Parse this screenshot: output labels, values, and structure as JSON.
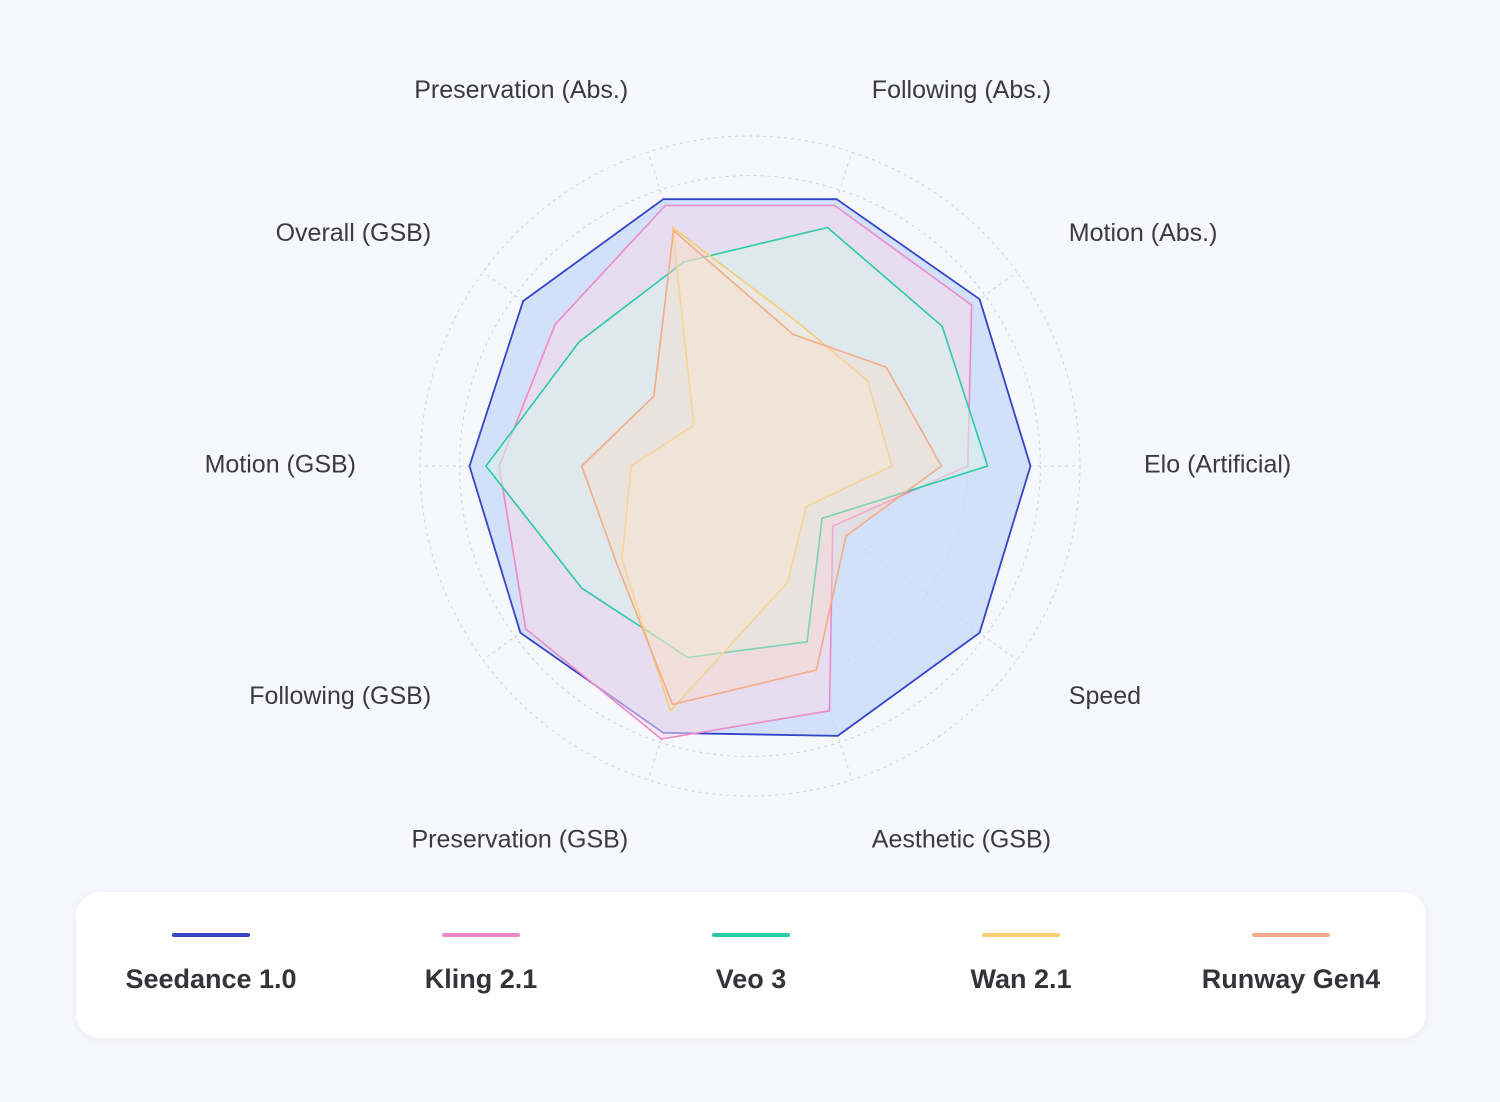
{
  "chart_data": {
    "type": "radar",
    "axes": [
      "Elo (Artificial)",
      "Motion (Abs.)",
      "Following (Abs.)",
      "Preservation (Abs.)",
      "Overall (GSB)",
      "Motion (GSB)",
      "Following (GSB)",
      "Preservation (GSB)",
      "Aesthetic (GSB)",
      "Speed"
    ],
    "rmax": 1.0,
    "ring_levels": [
      0.22,
      0.44,
      0.66,
      0.88,
      1.0
    ],
    "grid": true,
    "legend_position": "bottom",
    "series": [
      {
        "name": "Seedance 1.0",
        "color": "#3445c7",
        "fill": "#c8d8f7",
        "fill_opacity": 0.78,
        "values": [
          0.85,
          0.86,
          0.85,
          0.85,
          0.85,
          0.85,
          0.86,
          0.85,
          0.86,
          0.86
        ]
      },
      {
        "name": "Kling 2.1",
        "color": "#ee89c8",
        "fill": "#f7d9ea",
        "fill_opacity": 0.55,
        "values": [
          0.66,
          0.83,
          0.83,
          0.83,
          0.73,
          0.76,
          0.84,
          0.87,
          0.78,
          0.31
        ]
      },
      {
        "name": "Veo 3",
        "color": "#29cca6",
        "fill": "#d9f2ea",
        "fill_opacity": 0.55,
        "values": [
          0.72,
          0.72,
          0.76,
          0.65,
          0.64,
          0.8,
          0.63,
          0.61,
          0.56,
          0.27
        ]
      },
      {
        "name": "Wan 2.1",
        "color": "#f7cd73",
        "fill": "#fbecd6",
        "fill_opacity": 0.4,
        "values": [
          0.43,
          0.44,
          0.46,
          0.76,
          0.21,
          0.36,
          0.48,
          0.78,
          0.37,
          0.21
        ]
      },
      {
        "name": "Runway Gen4",
        "color": "#f3ac85",
        "fill": "#fadcc8",
        "fill_opacity": 0.4,
        "values": [
          0.58,
          0.51,
          0.42,
          0.75,
          0.36,
          0.51,
          0.5,
          0.76,
          0.65,
          0.36
        ]
      }
    ]
  }
}
